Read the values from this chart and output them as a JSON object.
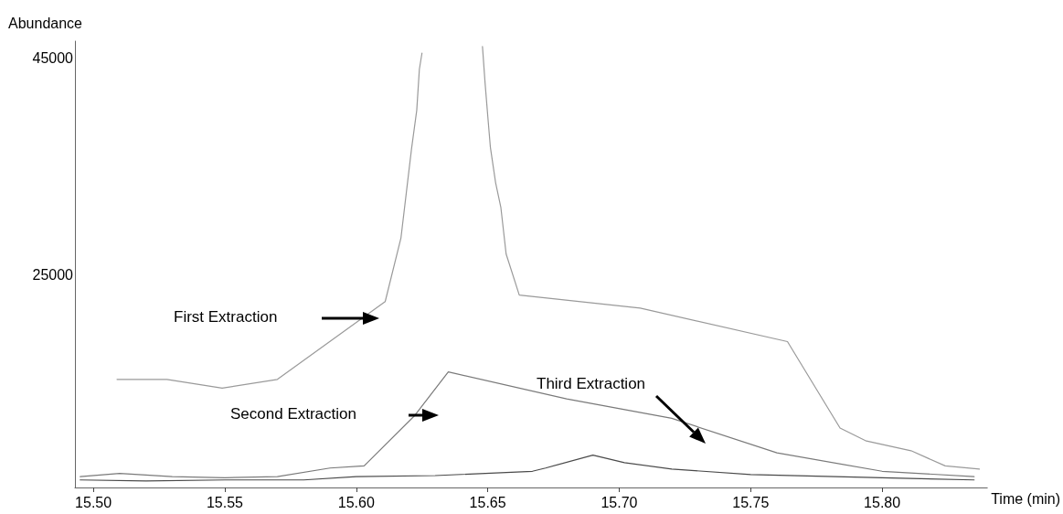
{
  "chart_data": {
    "type": "line",
    "xlabel": "Time (min)",
    "ylabel": "Abundance",
    "xlim": [
      15.493,
      15.84
    ],
    "xticks": [
      {
        "value": 15.5,
        "label": "15.50"
      },
      {
        "value": 15.55,
        "label": "15.55"
      },
      {
        "value": 15.6,
        "label": "15.60"
      },
      {
        "value": 15.65,
        "label": "15.65"
      },
      {
        "value": 15.7,
        "label": "15.70"
      },
      {
        "value": 15.75,
        "label": "15.75"
      },
      {
        "value": 15.8,
        "label": "15.80"
      }
    ],
    "ylim": [
      5300,
      46600
    ],
    "yticks": [
      25000,
      45000
    ],
    "grid": false,
    "marker": "none",
    "line_style": "solid",
    "series": [
      {
        "color": "#9a9a9a",
        "x": [
          15.509,
          15.528,
          15.549,
          15.57,
          15.611,
          15.617,
          15.619,
          15.621,
          15.623,
          15.624,
          15.625,
          15.636,
          15.648,
          15.649,
          15.65,
          15.651,
          15.653,
          15.655,
          15.657,
          15.662,
          15.708,
          15.764,
          15.784,
          15.794,
          15.811,
          15.824,
          15.837
        ],
        "values": [
          15300,
          15300,
          14500,
          15300,
          22500,
          28400,
          32500,
          36600,
          40200,
          44000,
          45500,
          null,
          46100,
          42700,
          39700,
          36800,
          33500,
          31200,
          26900,
          23100,
          21900,
          18800,
          10800,
          9600,
          8700,
          7300,
          7000
        ]
      },
      {
        "color": "#7a7a7a",
        "x": [
          15.495,
          15.51,
          15.53,
          15.55,
          15.57,
          15.59,
          15.603,
          15.622,
          15.635,
          15.68,
          15.72,
          15.76,
          15.8,
          15.835
        ],
        "values": [
          6300,
          6600,
          6300,
          6200,
          6300,
          7100,
          7300,
          11900,
          16000,
          13500,
          11700,
          8500,
          6800,
          6300
        ]
      },
      {
        "color": "#4a4a4a",
        "x": [
          15.495,
          15.52,
          15.55,
          15.58,
          15.6,
          15.63,
          15.667,
          15.672,
          15.69,
          15.702,
          15.72,
          15.75,
          15.8,
          15.835
        ],
        "values": [
          6000,
          5900,
          6000,
          6000,
          6300,
          6400,
          6800,
          7100,
          8300,
          7600,
          7000,
          6500,
          6200,
          6000
        ]
      }
    ],
    "annotations": [
      "First Extraction",
      "Second Extraction",
      "Third Extraction"
    ]
  }
}
